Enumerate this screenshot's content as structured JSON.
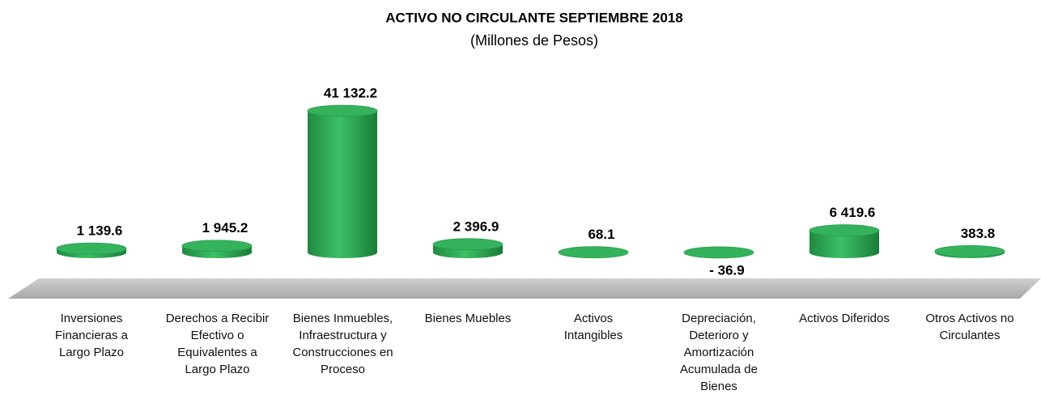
{
  "chart_data": {
    "type": "bar",
    "title": "ACTIVO NO CIRCULANTE  SEPTIEMBRE  2018",
    "subtitle": "(Millones de Pesos)",
    "categories": [
      "Inversiones Financieras a Largo Plazo",
      "Derechos a Recibir Efectivo o Equivalentes a Largo Plazo",
      "Bienes Inmuebles, Infraestructura y Construcciones en Proceso",
      "Bienes Muebles",
      "Activos Intangibles",
      "Depreciación, Deterioro y Amortización Acumulada de Bienes",
      "Activos Diferidos",
      "Otros Activos no Circulantes"
    ],
    "values": [
      1139.6,
      1945.2,
      41132.2,
      2396.9,
      68.1,
      -36.9,
      6419.6,
      383.8
    ],
    "value_labels": [
      "1 139.6",
      "1 945.2",
      "41 132.2",
      "2 396.9",
      "68.1",
      "- 36.9",
      "6 419.6",
      "383.8"
    ],
    "color": "#2eaa52"
  }
}
